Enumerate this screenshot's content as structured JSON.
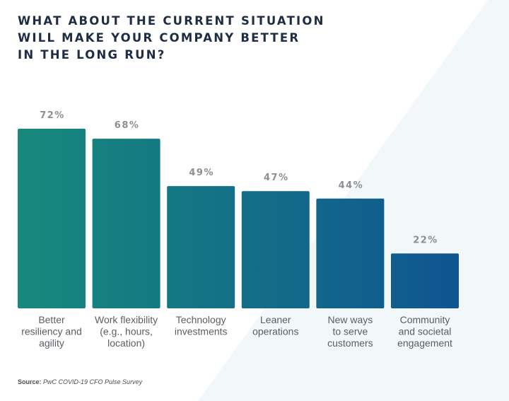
{
  "title_lines": [
    "WHAT ABOUT THE CURRENT SITUATION",
    "WILL MAKE YOUR COMPANY BETTER",
    "IN THE LONG RUN?"
  ],
  "source": {
    "label": "Source:",
    "text": "PwC COVID-19 CFO Pulse Survey"
  },
  "colors": {
    "title": "#1f2d44",
    "value_label": "#8c8f93",
    "category_label": "#5a5e63",
    "bar_start": "#178a7c",
    "bar_end": "#0f5591",
    "background_light": "#f2f7fa"
  },
  "chart_data": {
    "type": "bar",
    "title": "What about the current situation will make your company better in the long run?",
    "xlabel": "",
    "ylabel": "",
    "ylim": [
      0,
      72
    ],
    "grid": false,
    "legend": "none",
    "categories": [
      [
        "Better",
        "resiliency and",
        "agility"
      ],
      [
        "Work flexibility",
        "(e.g., hours,",
        "location)"
      ],
      [
        "Technology",
        "investments"
      ],
      [
        "Leaner",
        "operations"
      ],
      [
        "New ways",
        "to serve",
        "customers"
      ],
      [
        "Community",
        "and societal",
        "engagement"
      ]
    ],
    "values": [
      72,
      68,
      49,
      47,
      44,
      22
    ],
    "value_labels": [
      "72%",
      "68%",
      "49%",
      "47%",
      "44%",
      "22%"
    ],
    "bar_colors": [
      "#178a7c",
      "#137f80",
      "#117583",
      "#126b88",
      "#13608c",
      "#0f5591"
    ],
    "units": "%"
  }
}
